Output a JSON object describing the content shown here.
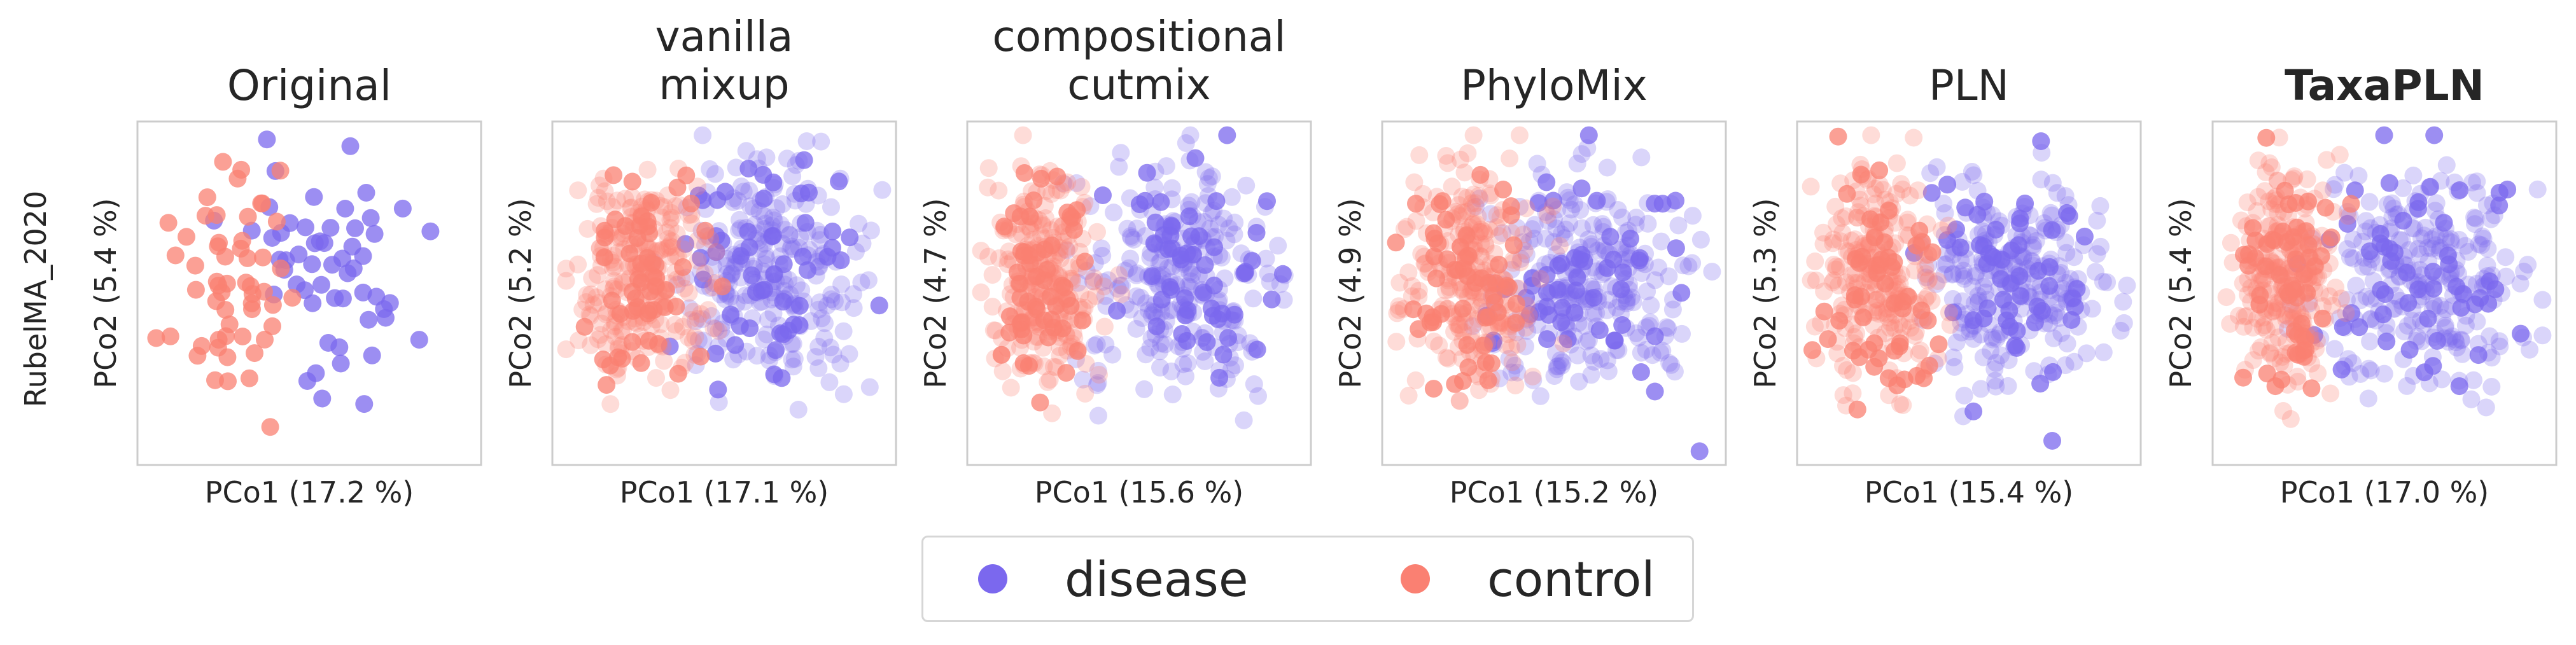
{
  "row_label": "RubelMA_2020",
  "legend": {
    "items": [
      {
        "label": "disease",
        "color": "#7B68EE"
      },
      {
        "label": "control",
        "color": "#FA8072"
      }
    ]
  },
  "chart_data": [
    {
      "type": "scatter",
      "title_lines": [
        "Original"
      ],
      "bold": false,
      "xlabel": "PCo1 (17.2 %)",
      "ylabel": "PCo2 (5.4 %)",
      "xlim": [
        0,
        1
      ],
      "ylim": [
        0,
        1
      ],
      "grid": false,
      "legend": "bottom-center",
      "series": [
        {
          "name": "disease",
          "color": "#7B68EE",
          "n_original": 55,
          "n_synthetic": 0,
          "spread": [
            0.22,
            0.9
          ]
        },
        {
          "name": "control",
          "color": "#FA8072",
          "n_original": 55,
          "n_synthetic": 0,
          "spread": [
            0.05,
            0.5
          ]
        }
      ]
    },
    {
      "type": "scatter",
      "title_lines": [
        "vanilla",
        "mixup"
      ],
      "bold": false,
      "xlabel": "PCo1 (17.1 %)",
      "ylabel": "PCo2 (5.2 %)",
      "xlim": [
        0,
        1
      ],
      "ylim": [
        0,
        1
      ],
      "grid": false,
      "series": [
        {
          "name": "disease",
          "color": "#7B68EE",
          "n_original": 55,
          "n_synthetic": 230,
          "spread": [
            0.3,
            0.97
          ]
        },
        {
          "name": "control",
          "color": "#FA8072",
          "n_original": 55,
          "n_synthetic": 230,
          "spread": [
            0.03,
            0.5
          ]
        }
      ]
    },
    {
      "type": "scatter",
      "title_lines": [
        "compositional",
        "cutmix"
      ],
      "bold": false,
      "xlabel": "PCo1 (15.6 %)",
      "ylabel": "PCo2 (4.7 %)",
      "xlim": [
        0,
        1
      ],
      "ylim": [
        0,
        1
      ],
      "grid": false,
      "series": [
        {
          "name": "disease",
          "color": "#7B68EE",
          "n_original": 55,
          "n_synthetic": 230,
          "spread": [
            0.28,
            0.98
          ]
        },
        {
          "name": "control",
          "color": "#FA8072",
          "n_original": 55,
          "n_synthetic": 230,
          "spread": [
            0.02,
            0.42
          ]
        }
      ]
    },
    {
      "type": "scatter",
      "title_lines": [
        "PhyloMix"
      ],
      "bold": false,
      "xlabel": "PCo1 (15.2 %)",
      "ylabel": "PCo2 (4.9 %)",
      "xlim": [
        0,
        1
      ],
      "ylim": [
        0,
        1
      ],
      "grid": false,
      "series": [
        {
          "name": "disease",
          "color": "#7B68EE",
          "n_original": 55,
          "n_synthetic": 230,
          "spread": [
            0.22,
            0.97
          ]
        },
        {
          "name": "control",
          "color": "#FA8072",
          "n_original": 55,
          "n_synthetic": 230,
          "spread": [
            0.03,
            0.48
          ]
        }
      ]
    },
    {
      "type": "scatter",
      "title_lines": [
        "PLN"
      ],
      "bold": false,
      "xlabel": "PCo1 (15.4 %)",
      "ylabel": "PCo2 (5.3 %)",
      "xlim": [
        0,
        1
      ],
      "ylim": [
        0,
        1
      ],
      "grid": false,
      "series": [
        {
          "name": "disease",
          "color": "#7B68EE",
          "n_original": 55,
          "n_synthetic": 230,
          "spread": [
            0.3,
            0.97
          ]
        },
        {
          "name": "control",
          "color": "#FA8072",
          "n_original": 55,
          "n_synthetic": 230,
          "spread": [
            0.03,
            0.45
          ]
        }
      ]
    },
    {
      "type": "scatter",
      "title_lines": [
        "TaxaPLN"
      ],
      "bold": true,
      "xlabel": "PCo1 (17.0 %)",
      "ylabel": "PCo2 (5.4 %)",
      "xlim": [
        0,
        1
      ],
      "ylim": [
        0,
        1
      ],
      "grid": false,
      "series": [
        {
          "name": "disease",
          "color": "#7B68EE",
          "n_original": 55,
          "n_synthetic": 230,
          "spread": [
            0.25,
            0.97
          ]
        },
        {
          "name": "control",
          "color": "#FA8072",
          "n_original": 55,
          "n_synthetic": 230,
          "spread": [
            0.03,
            0.4
          ]
        }
      ]
    }
  ]
}
